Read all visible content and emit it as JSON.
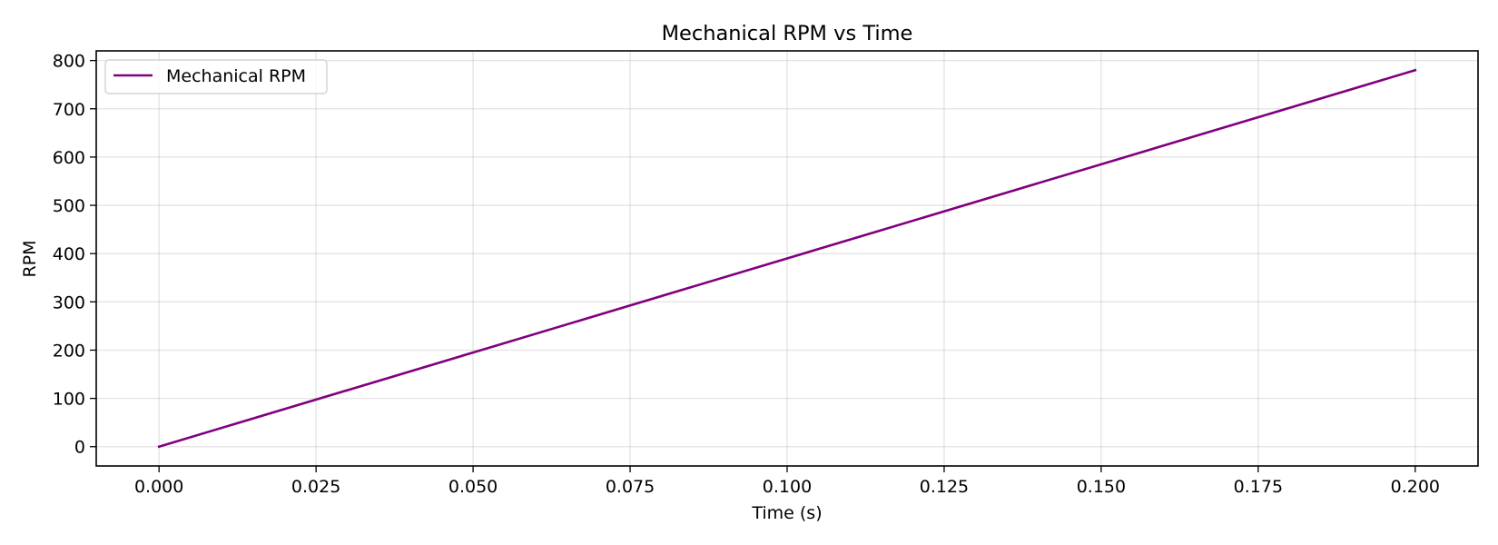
{
  "chart_data": {
    "type": "line",
    "title": "Mechanical RPM vs Time",
    "xlabel": "Time (s)",
    "ylabel": "RPM",
    "xlim": [
      -0.01,
      0.21
    ],
    "ylim": [
      -40,
      820
    ],
    "x_ticks": [
      0.0,
      0.025,
      0.05,
      0.075,
      0.1,
      0.125,
      0.15,
      0.175,
      0.2
    ],
    "x_tick_labels": [
      "0.000",
      "0.025",
      "0.050",
      "0.075",
      "0.100",
      "0.125",
      "0.150",
      "0.175",
      "0.200"
    ],
    "y_ticks": [
      0,
      100,
      200,
      300,
      400,
      500,
      600,
      700,
      800
    ],
    "y_tick_labels": [
      "0",
      "100",
      "200",
      "300",
      "400",
      "500",
      "600",
      "700",
      "800"
    ],
    "grid": true,
    "legend_position": "top-left",
    "series": [
      {
        "name": "Mechanical RPM",
        "color": "#800080",
        "x": [
          0.0,
          0.2
        ],
        "y": [
          0,
          780
        ]
      }
    ]
  }
}
